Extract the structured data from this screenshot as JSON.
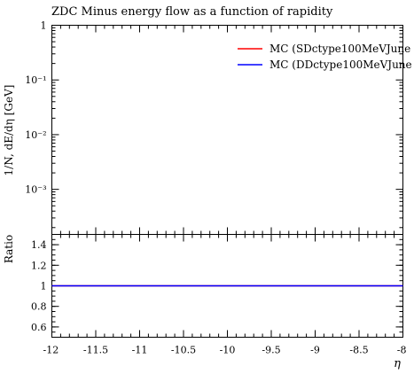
{
  "chart_data": [
    {
      "type": "line",
      "title": "ZDC Minus energy flow as a function of rapidity",
      "ylabel": "1/N, dE/dη [GeV]",
      "yscale": "log",
      "ylim": [
        0.00015,
        1
      ],
      "y_ticks": [
        {
          "value": 1,
          "label": "1"
        },
        {
          "value": 0.1,
          "label": "10⁻¹"
        },
        {
          "value": 0.01,
          "label": "10⁻²"
        },
        {
          "value": 0.001,
          "label": "10⁻³"
        }
      ],
      "xlim": [
        -12,
        -8
      ],
      "legend_position": "top-right",
      "series": [
        {
          "name": "MC (SDctype100MeVJune",
          "color": "#ff0000",
          "x": [],
          "y": []
        },
        {
          "name": "MC (DDctype100MeVJune",
          "color": "#0000ff",
          "x": [],
          "y": []
        }
      ]
    },
    {
      "type": "line",
      "ylabel": "Ratio",
      "xlabel": "η",
      "xlim": [
        -12,
        -8
      ],
      "ylim": [
        0.5,
        1.5
      ],
      "x_ticks": [
        {
          "value": -12,
          "label": "-12"
        },
        {
          "value": -11.5,
          "label": "-11.5"
        },
        {
          "value": -11,
          "label": "-11"
        },
        {
          "value": -10.5,
          "label": "-10.5"
        },
        {
          "value": -10,
          "label": "-10"
        },
        {
          "value": -9.5,
          "label": "-9.5"
        },
        {
          "value": -9,
          "label": "-9"
        },
        {
          "value": -8.5,
          "label": "-8.5"
        },
        {
          "value": -8,
          "label": "-8"
        }
      ],
      "y_ticks": [
        {
          "value": 1.4,
          "label": "1.4"
        },
        {
          "value": 1.2,
          "label": "1.2"
        },
        {
          "value": 1.0,
          "label": "1"
        },
        {
          "value": 0.8,
          "label": "0.8"
        },
        {
          "value": 0.6,
          "label": "0.6"
        }
      ],
      "series": [
        {
          "color": "#ff0000",
          "x": [
            -12,
            -8
          ],
          "y": [
            1,
            1
          ]
        },
        {
          "color": "#0000ff",
          "x": [
            -12,
            -8
          ],
          "y": [
            1,
            1
          ]
        }
      ]
    }
  ]
}
